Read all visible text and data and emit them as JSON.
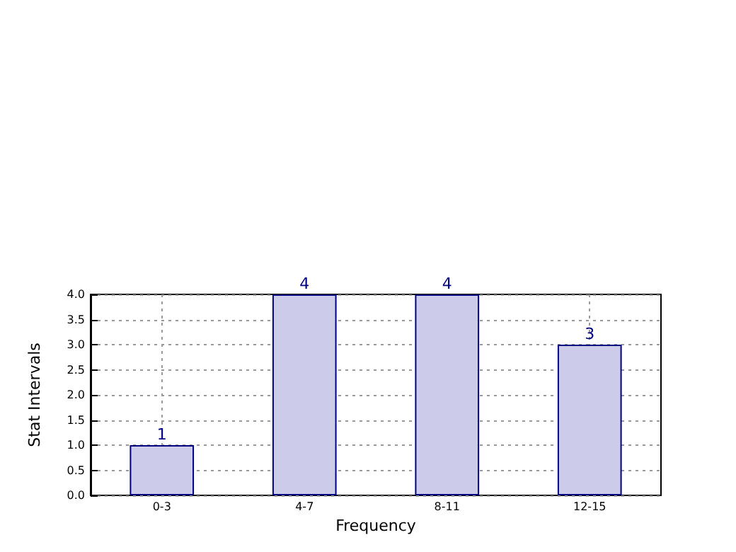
{
  "chart_data": {
    "type": "bar",
    "xlabel": "Frequency",
    "ylabel": "Stat Intervals",
    "categories": [
      "0-3",
      "4-7",
      "8-11",
      "12-15"
    ],
    "series": [
      {
        "color": "#ccccea",
        "values": [
          1,
          4,
          4,
          3
        ]
      }
    ],
    "ylim": [
      0,
      4
    ],
    "yticks": [
      {
        "value": 0,
        "label": "0.0"
      },
      {
        "value": 0.5,
        "label": "0.5"
      },
      {
        "value": 1,
        "label": "1.0"
      },
      {
        "value": 1.5,
        "label": "1.5"
      },
      {
        "value": 2,
        "label": "2.0"
      },
      {
        "value": 2.5,
        "label": "2.5"
      },
      {
        "value": 3,
        "label": "3.0"
      },
      {
        "value": 3.5,
        "label": "3.5"
      },
      {
        "value": 4,
        "label": "4.0"
      }
    ],
    "grid": true,
    "data_labels": true
  }
}
